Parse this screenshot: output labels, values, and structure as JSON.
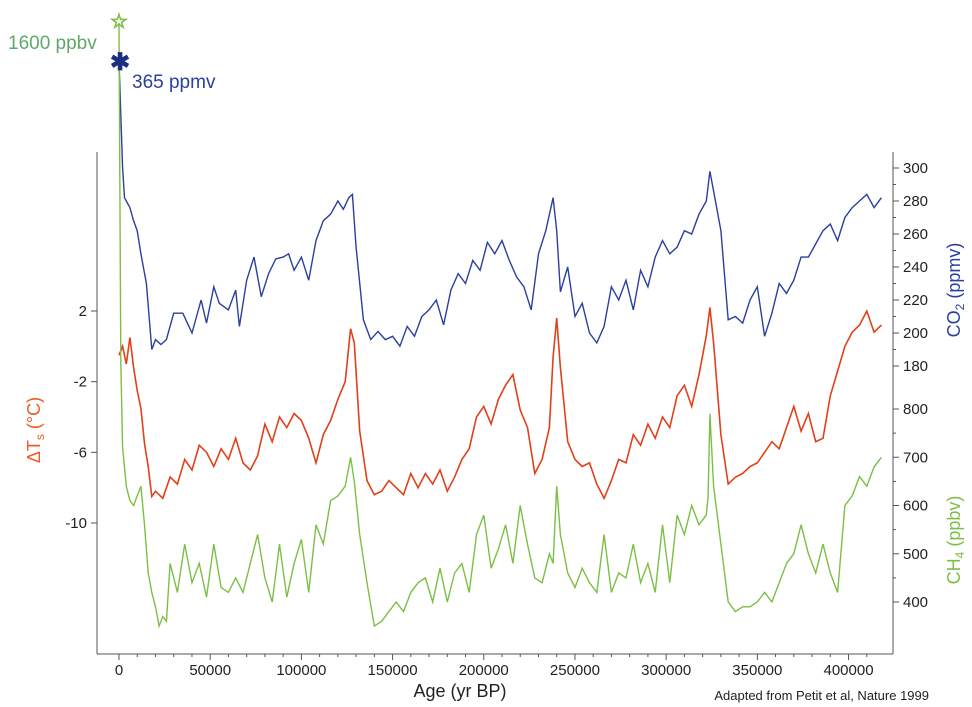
{
  "chart_data": {
    "type": "line",
    "title": "",
    "source_note": "Adapted from Petit et al, Nature 1999",
    "x_axis": {
      "label": "Age (yr BP)",
      "range": [
        0,
        420000
      ],
      "ticks": [
        "0",
        "50000",
        "100000",
        "150000",
        "200000",
        "250000",
        "300000",
        "350000",
        "400000"
      ],
      "tick_values": [
        0,
        50000,
        100000,
        150000,
        200000,
        250000,
        300000,
        350000,
        400000
      ]
    },
    "left_axis": {
      "label_main": "ΔT",
      "label_sub": "s",
      "label_unit": " (°C)",
      "range": [
        -10,
        2
      ],
      "ticks": [
        "2",
        "-2",
        "-6",
        "-10"
      ],
      "tick_values": [
        2,
        -2,
        -6,
        -10
      ],
      "color": "#f15a22"
    },
    "right_axis_co2": {
      "label_main": "CO",
      "label_sub": "2",
      "label_unit": " (ppmv)",
      "range": [
        180,
        300
      ],
      "ticks": [
        "300",
        "280",
        "260",
        "240",
        "220",
        "200",
        "180"
      ],
      "tick_values": [
        300,
        280,
        260,
        240,
        220,
        200,
        180
      ],
      "color": "#2a3f9e"
    },
    "right_axis_ch4": {
      "label_main": "CH",
      "label_sub": "4",
      "label_unit": " (ppbv)",
      "range": [
        400,
        800
      ],
      "ticks": [
        "800",
        "700",
        "600",
        "500",
        "400"
      ],
      "tick_values": [
        800,
        700,
        600,
        500,
        400
      ],
      "color": "#7cbf44"
    },
    "annotations": {
      "ch4_modern": {
        "text": "1600 ppbv",
        "color": "#5fa86a"
      },
      "co2_modern": {
        "text": "365 ppmv",
        "color": "#2a3f9e"
      }
    },
    "series": [
      {
        "key": "co2",
        "axis": "right_axis_co2",
        "color": "#2a3f9e",
        "x": [
          0,
          2000,
          3000,
          6000,
          8000,
          10000,
          12000,
          15000,
          18000,
          20000,
          23000,
          26000,
          30000,
          35000,
          40000,
          45000,
          48000,
          52000,
          55000,
          60000,
          64000,
          66000,
          70000,
          74000,
          78000,
          82000,
          86000,
          90000,
          93000,
          96000,
          100000,
          104000,
          108000,
          112000,
          116000,
          120000,
          123000,
          126000,
          128000,
          130000,
          134000,
          138000,
          142000,
          146000,
          150000,
          154000,
          158000,
          162000,
          166000,
          170000,
          174000,
          178000,
          182000,
          186000,
          190000,
          194000,
          198000,
          202000,
          206000,
          210000,
          214000,
          218000,
          222000,
          226000,
          230000,
          234000,
          238000,
          240000,
          242000,
          246000,
          250000,
          254000,
          258000,
          262000,
          266000,
          270000,
          274000,
          278000,
          282000,
          286000,
          290000,
          294000,
          298000,
          302000,
          306000,
          310000,
          314000,
          318000,
          322000,
          324000,
          326000,
          330000,
          334000,
          338000,
          342000,
          346000,
          350000,
          354000,
          358000,
          362000,
          366000,
          370000,
          374000,
          378000,
          382000,
          386000,
          390000,
          394000,
          398000,
          402000,
          406000,
          410000,
          414000,
          418000
        ],
        "y": [
          365,
          300,
          282,
          276,
          268,
          262,
          248,
          230,
          190,
          196,
          193,
          196,
          212,
          212,
          200,
          220,
          206,
          228,
          218,
          214,
          226,
          204,
          232,
          246,
          222,
          236,
          245,
          246,
          248,
          238,
          246,
          232,
          256,
          268,
          272,
          280,
          275,
          282,
          284,
          252,
          208,
          196,
          201,
          196,
          198,
          192,
          204,
          198,
          210,
          214,
          220,
          205,
          226,
          236,
          230,
          244,
          238,
          255,
          248,
          256,
          244,
          234,
          228,
          214,
          248,
          262,
          282,
          262,
          225,
          240,
          210,
          218,
          200,
          194,
          204,
          228,
          220,
          232,
          214,
          238,
          228,
          246,
          256,
          248,
          252,
          262,
          260,
          272,
          280,
          298,
          286,
          262,
          208,
          210,
          206,
          220,
          228,
          198,
          212,
          230,
          224,
          232,
          246,
          246,
          254,
          262,
          266,
          256,
          270,
          276,
          280,
          284,
          276,
          282
        ]
      },
      {
        "key": "temperature",
        "axis": "left_axis",
        "color": "#e0401a",
        "x": [
          0,
          2000,
          4000,
          6000,
          8000,
          10000,
          12000,
          14000,
          16000,
          18000,
          20000,
          24000,
          28000,
          32000,
          36000,
          40000,
          44000,
          48000,
          52000,
          56000,
          60000,
          64000,
          68000,
          72000,
          76000,
          80000,
          84000,
          88000,
          92000,
          96000,
          100000,
          104000,
          108000,
          112000,
          116000,
          120000,
          124000,
          127000,
          129000,
          132000,
          136000,
          140000,
          144000,
          148000,
          152000,
          156000,
          160000,
          164000,
          168000,
          172000,
          176000,
          180000,
          184000,
          188000,
          192000,
          196000,
          200000,
          204000,
          208000,
          212000,
          216000,
          220000,
          224000,
          228000,
          232000,
          236000,
          238000,
          240000,
          242000,
          246000,
          250000,
          254000,
          258000,
          262000,
          266000,
          270000,
          274000,
          278000,
          282000,
          286000,
          290000,
          294000,
          298000,
          302000,
          306000,
          310000,
          314000,
          318000,
          322000,
          324000,
          326000,
          330000,
          334000,
          338000,
          342000,
          346000,
          350000,
          354000,
          358000,
          362000,
          366000,
          370000,
          374000,
          378000,
          382000,
          386000,
          390000,
          394000,
          398000,
          402000,
          406000,
          410000,
          414000,
          418000
        ],
        "y": [
          -0.5,
          0,
          -1,
          0.5,
          -1.2,
          -2.5,
          -3.5,
          -5.5,
          -6.8,
          -8.5,
          -8.2,
          -8.6,
          -7.4,
          -7.8,
          -6.4,
          -7.0,
          -5.6,
          -6.0,
          -6.8,
          -5.8,
          -6.4,
          -5.2,
          -6.6,
          -7.0,
          -6.2,
          -4.4,
          -5.4,
          -4.0,
          -4.6,
          -3.8,
          -4.2,
          -5.2,
          -6.6,
          -5.0,
          -4.2,
          -3.0,
          -2.0,
          1.0,
          0.2,
          -4.8,
          -7.6,
          -8.4,
          -8.2,
          -7.6,
          -8.0,
          -8.4,
          -7.2,
          -8.0,
          -7.2,
          -7.8,
          -7.0,
          -8.2,
          -7.4,
          -6.4,
          -5.8,
          -4.0,
          -3.4,
          -4.4,
          -3.0,
          -2.2,
          -1.6,
          -3.6,
          -4.6,
          -7.2,
          -6.4,
          -4.6,
          -0.6,
          1.6,
          -1.2,
          -5.4,
          -6.4,
          -6.8,
          -6.6,
          -7.8,
          -8.6,
          -7.6,
          -6.4,
          -6.6,
          -5.0,
          -5.6,
          -4.4,
          -5.2,
          -4.0,
          -4.6,
          -2.8,
          -2.2,
          -3.4,
          -1.6,
          0.6,
          2.2,
          0.2,
          -5.0,
          -7.8,
          -7.4,
          -7.2,
          -6.8,
          -6.6,
          -6.0,
          -5.4,
          -5.8,
          -4.6,
          -3.4,
          -4.8,
          -3.8,
          -5.4,
          -5.2,
          -2.8,
          -1.4,
          0.0,
          0.8,
          1.2,
          2.0,
          0.8,
          1.2
        ]
      },
      {
        "key": "ch4",
        "axis": "right_axis_ch4",
        "color": "#7cbf44",
        "x": [
          0,
          1000,
          2000,
          4000,
          6000,
          8000,
          10000,
          12000,
          14000,
          16000,
          18000,
          20000,
          22000,
          24000,
          26000,
          28000,
          32000,
          36000,
          40000,
          44000,
          48000,
          52000,
          56000,
          60000,
          64000,
          68000,
          72000,
          76000,
          80000,
          84000,
          88000,
          92000,
          96000,
          100000,
          104000,
          108000,
          112000,
          116000,
          120000,
          124000,
          127000,
          129000,
          132000,
          136000,
          140000,
          144000,
          148000,
          152000,
          156000,
          160000,
          164000,
          168000,
          172000,
          176000,
          180000,
          184000,
          188000,
          192000,
          196000,
          200000,
          204000,
          208000,
          212000,
          216000,
          220000,
          224000,
          228000,
          232000,
          236000,
          238000,
          240000,
          242000,
          246000,
          250000,
          254000,
          258000,
          262000,
          266000,
          270000,
          274000,
          278000,
          282000,
          286000,
          290000,
          294000,
          298000,
          302000,
          306000,
          310000,
          314000,
          318000,
          322000,
          323000,
          324000,
          326000,
          330000,
          334000,
          338000,
          342000,
          346000,
          350000,
          354000,
          358000,
          362000,
          366000,
          370000,
          374000,
          378000,
          382000,
          386000,
          390000,
          394000,
          398000,
          402000,
          406000,
          410000,
          414000,
          418000
        ],
        "y": [
          1600,
          900,
          720,
          640,
          610,
          600,
          620,
          640,
          560,
          460,
          420,
          390,
          350,
          370,
          360,
          480,
          420,
          520,
          440,
          480,
          410,
          520,
          430,
          420,
          450,
          420,
          480,
          540,
          450,
          400,
          520,
          410,
          480,
          530,
          420,
          560,
          520,
          610,
          620,
          640,
          700,
          650,
          540,
          440,
          350,
          360,
          380,
          400,
          380,
          420,
          440,
          450,
          400,
          470,
          400,
          460,
          480,
          420,
          540,
          580,
          470,
          510,
          560,
          480,
          600,
          520,
          450,
          440,
          500,
          480,
          640,
          540,
          460,
          430,
          470,
          440,
          420,
          540,
          420,
          460,
          450,
          520,
          440,
          480,
          420,
          560,
          440,
          580,
          540,
          600,
          560,
          580,
          620,
          790,
          640,
          520,
          400,
          380,
          390,
          390,
          400,
          420,
          400,
          440,
          480,
          500,
          560,
          500,
          460,
          520,
          460,
          420,
          600,
          620,
          660,
          640,
          680,
          700
        ]
      }
    ]
  }
}
